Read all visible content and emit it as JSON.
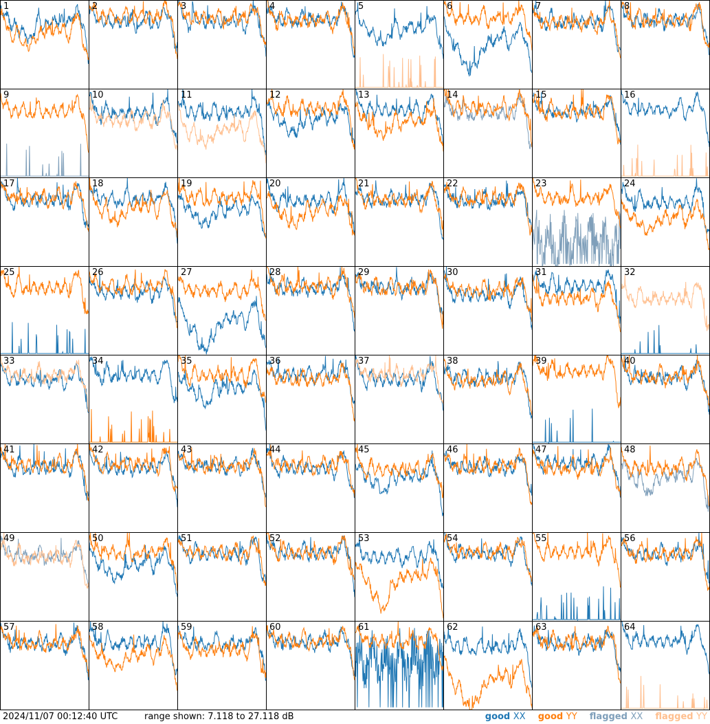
{
  "chart_data": {
    "type": "line",
    "timestamp": "2024/11/07 00:12:40 UTC",
    "range_text": "range shown: 7.118 to 27.118 dB",
    "ylim": [
      7.118,
      27.118
    ],
    "colors": {
      "good_xx": "#1f77b4",
      "good_yy": "#ff7f0e",
      "flagged_xx": "#7f9fba",
      "flagged_yy": "#ffbf8f"
    },
    "legend": [
      {
        "status": "good",
        "pol": "XX",
        "color": "#1f77b4"
      },
      {
        "status": "good",
        "pol": "YY",
        "color": "#ff7f0e"
      },
      {
        "status": "flagged",
        "pol": "XX",
        "color": "#7f9fba"
      },
      {
        "status": "flagged",
        "pol": "YY",
        "color": "#ffbf8f"
      }
    ],
    "panels": [
      {
        "id": "1",
        "xx": "good",
        "yy": "good",
        "xx_level": 22.3,
        "yy_level": 20.3,
        "xx_style": "dip",
        "yy_style": "dip"
      },
      {
        "id": "2",
        "xx": "good",
        "yy": "good",
        "xx_level": 22.3,
        "yy_level": 23.5,
        "xx_style": "normal",
        "yy_style": "normal"
      },
      {
        "id": "3",
        "xx": "good",
        "yy": "good",
        "xx_level": 22.3,
        "yy_level": 23.2,
        "xx_style": "normal",
        "yy_style": "normal"
      },
      {
        "id": "4",
        "xx": "good",
        "yy": "good",
        "xx_level": 22.8,
        "yy_level": 22.6,
        "xx_style": "normal",
        "yy_style": "normal"
      },
      {
        "id": "5",
        "xx": "good",
        "yy": "flagged",
        "xx_level": 21.0,
        "yy_level": 7.6,
        "xx_style": "dip",
        "yy_style": "spiky_low"
      },
      {
        "id": "6",
        "xx": "good",
        "yy": "good",
        "xx_level": 18.5,
        "yy_level": 23.2,
        "xx_style": "deep_dip",
        "yy_style": "normal"
      },
      {
        "id": "7",
        "xx": "good",
        "yy": "good",
        "xx_level": 22.3,
        "yy_level": 22.1,
        "xx_style": "normal",
        "yy_style": "normal"
      },
      {
        "id": "8",
        "xx": "good",
        "yy": "good",
        "xx_level": 22.6,
        "yy_level": 22.7,
        "xx_style": "normal",
        "yy_style": "normal"
      },
      {
        "id": "9",
        "xx": "flagged",
        "yy": "good",
        "xx_level": 8.5,
        "yy_level": 22.1,
        "xx_style": "spiky_low",
        "yy_style": "normal"
      },
      {
        "id": "10",
        "xx": "good",
        "yy": "flagged",
        "xx_level": 21.6,
        "yy_level": 20.1,
        "xx_style": "normal",
        "yy_style": "normal"
      },
      {
        "id": "11",
        "xx": "good",
        "yy": "flagged",
        "xx_level": 21.8,
        "yy_level": 18.2,
        "xx_style": "normal",
        "yy_style": "dip"
      },
      {
        "id": "12",
        "xx": "good",
        "yy": "good",
        "xx_level": 20.7,
        "yy_level": 22.7,
        "xx_style": "dip",
        "yy_style": "normal"
      },
      {
        "id": "13",
        "xx": "good",
        "yy": "good",
        "xx_level": 22.3,
        "yy_level": 20.1,
        "xx_style": "normal",
        "yy_style": "dip"
      },
      {
        "id": "14",
        "xx": "flagged",
        "yy": "good",
        "xx_level": 21.8,
        "yy_level": 22.8,
        "xx_style": "normal",
        "yy_style": "normal"
      },
      {
        "id": "15",
        "xx": "good",
        "yy": "good",
        "xx_level": 22.1,
        "yy_level": 22.1,
        "xx_style": "normal",
        "yy_style": "normal"
      },
      {
        "id": "16",
        "xx": "good",
        "yy": "flagged",
        "xx_level": 22.6,
        "yy_level": 7.4,
        "xx_style": "normal",
        "yy_style": "spiky_low"
      },
      {
        "id": "17",
        "xx": "good",
        "yy": "good",
        "xx_level": 22.1,
        "yy_level": 22.6,
        "xx_style": "normal",
        "yy_style": "normal"
      },
      {
        "id": "18",
        "xx": "good",
        "yy": "good",
        "xx_level": 22.3,
        "yy_level": 20.7,
        "xx_style": "normal",
        "yy_style": "dip"
      },
      {
        "id": "19",
        "xx": "good",
        "yy": "good",
        "xx_level": 20.1,
        "yy_level": 22.6,
        "xx_style": "dip",
        "yy_style": "normal"
      },
      {
        "id": "20",
        "xx": "good",
        "yy": "good",
        "xx_level": 21.8,
        "yy_level": 20.0,
        "xx_style": "normal",
        "yy_style": "dip"
      },
      {
        "id": "21",
        "xx": "good",
        "yy": "good",
        "xx_level": 22.2,
        "yy_level": 22.1,
        "xx_style": "normal",
        "yy_style": "normal"
      },
      {
        "id": "22",
        "xx": "good",
        "yy": "good",
        "xx_level": 21.8,
        "yy_level": 22.4,
        "xx_style": "normal",
        "yy_style": "normal"
      },
      {
        "id": "23",
        "xx": "flagged",
        "yy": "good",
        "xx_level": 12.5,
        "yy_level": 22.6,
        "xx_style": "spiky_mid",
        "yy_style": "normal"
      },
      {
        "id": "24",
        "xx": "good",
        "yy": "good",
        "xx_level": 21.6,
        "yy_level": 18.5,
        "xx_style": "normal",
        "yy_style": "dip"
      },
      {
        "id": "25",
        "xx": "good",
        "yy": "good",
        "xx_level": 7.4,
        "yy_level": 22.3,
        "xx_style": "spiky_low",
        "yy_style": "normal"
      },
      {
        "id": "26",
        "xx": "good",
        "yy": "good",
        "xx_level": 21.3,
        "yy_level": 22.6,
        "xx_style": "normal",
        "yy_style": "normal"
      },
      {
        "id": "27",
        "xx": "good",
        "yy": "good",
        "xx_level": 15.5,
        "yy_level": 21.6,
        "xx_style": "deep_dip",
        "yy_style": "normal"
      },
      {
        "id": "28",
        "xx": "good",
        "yy": "good",
        "xx_level": 22.1,
        "yy_level": 22.6,
        "xx_style": "normal",
        "yy_style": "normal"
      },
      {
        "id": "29",
        "xx": "good",
        "yy": "good",
        "xx_level": 22.3,
        "yy_level": 22.3,
        "xx_style": "normal",
        "yy_style": "normal"
      },
      {
        "id": "30",
        "xx": "good",
        "yy": "good",
        "xx_level": 20.7,
        "yy_level": 21.6,
        "xx_style": "normal",
        "yy_style": "normal"
      },
      {
        "id": "31",
        "xx": "good",
        "yy": "good",
        "xx_level": 22.6,
        "yy_level": 19.9,
        "xx_style": "normal",
        "yy_style": "normal"
      },
      {
        "id": "32",
        "xx": "good",
        "yy": "flagged",
        "xx_level": 7.4,
        "yy_level": 19.9,
        "xx_style": "spiky_low",
        "yy_style": "normal"
      },
      {
        "id": "33",
        "xx": "good",
        "yy": "flagged",
        "xx_level": 21.6,
        "yy_level": 22.6,
        "xx_style": "normal",
        "yy_style": "normal"
      },
      {
        "id": "34",
        "xx": "good",
        "yy": "good",
        "xx_level": 22.6,
        "yy_level": 8.8,
        "xx_style": "normal",
        "yy_style": "spiky_low"
      },
      {
        "id": "35",
        "xx": "good",
        "yy": "good",
        "xx_level": 20.0,
        "yy_level": 22.6,
        "xx_style": "dip",
        "yy_style": "normal"
      },
      {
        "id": "36",
        "xx": "good",
        "yy": "good",
        "xx_level": 22.6,
        "yy_level": 21.6,
        "xx_style": "normal",
        "yy_style": "normal"
      },
      {
        "id": "37",
        "xx": "good",
        "yy": "flagged",
        "xx_level": 21.6,
        "yy_level": 22.6,
        "xx_style": "normal",
        "yy_style": "normal"
      },
      {
        "id": "38",
        "xx": "good",
        "yy": "good",
        "xx_level": 21.8,
        "yy_level": 21.3,
        "xx_style": "normal",
        "yy_style": "normal"
      },
      {
        "id": "39",
        "xx": "good",
        "yy": "good",
        "xx_level": 7.4,
        "yy_level": 23.5,
        "xx_style": "spiky_low",
        "yy_style": "normal"
      },
      {
        "id": "40",
        "xx": "good",
        "yy": "good",
        "xx_level": 22.1,
        "yy_level": 22.3,
        "xx_style": "normal",
        "yy_style": "normal"
      },
      {
        "id": "41",
        "xx": "good",
        "yy": "good",
        "xx_level": 21.8,
        "yy_level": 22.3,
        "xx_style": "normal",
        "yy_style": "normal"
      },
      {
        "id": "42",
        "xx": "good",
        "yy": "good",
        "xx_level": 21.8,
        "yy_level": 22.6,
        "xx_style": "normal",
        "yy_style": "normal"
      },
      {
        "id": "43",
        "xx": "good",
        "yy": "good",
        "xx_level": 22.1,
        "yy_level": 22.1,
        "xx_style": "normal",
        "yy_style": "normal"
      },
      {
        "id": "44",
        "xx": "good",
        "yy": "good",
        "xx_level": 21.6,
        "yy_level": 22.3,
        "xx_style": "normal",
        "yy_style": "normal"
      },
      {
        "id": "45",
        "xx": "good",
        "yy": "good",
        "xx_level": 20.0,
        "yy_level": 21.3,
        "xx_style": "dip",
        "yy_style": "normal"
      },
      {
        "id": "46",
        "xx": "good",
        "yy": "good",
        "xx_level": 21.8,
        "yy_level": 22.1,
        "xx_style": "normal",
        "yy_style": "normal"
      },
      {
        "id": "47",
        "xx": "good",
        "yy": "good",
        "xx_level": 22.6,
        "yy_level": 21.6,
        "xx_style": "normal",
        "yy_style": "normal"
      },
      {
        "id": "48",
        "xx": "flagged",
        "yy": "good",
        "xx_level": 20.0,
        "yy_level": 21.6,
        "xx_style": "dip",
        "yy_style": "normal"
      },
      {
        "id": "49",
        "xx": "flagged",
        "yy": "flagged",
        "xx_level": 21.8,
        "yy_level": 21.6,
        "xx_style": "normal",
        "yy_style": "normal"
      },
      {
        "id": "50",
        "xx": "good",
        "yy": "good",
        "xx_level": 20.3,
        "yy_level": 22.6,
        "xx_style": "dip",
        "yy_style": "normal"
      },
      {
        "id": "51",
        "xx": "good",
        "yy": "good",
        "xx_level": 22.3,
        "yy_level": 22.6,
        "xx_style": "normal",
        "yy_style": "normal"
      },
      {
        "id": "52",
        "xx": "good",
        "yy": "good",
        "xx_level": 22.6,
        "yy_level": 22.6,
        "xx_style": "normal",
        "yy_style": "normal"
      },
      {
        "id": "53",
        "xx": "good",
        "yy": "good",
        "xx_level": 21.6,
        "yy_level": 17.5,
        "xx_style": "normal",
        "yy_style": "deep_dip"
      },
      {
        "id": "54",
        "xx": "good",
        "yy": "good",
        "xx_level": 22.3,
        "yy_level": 22.8,
        "xx_style": "normal",
        "yy_style": "normal"
      },
      {
        "id": "55",
        "xx": "good",
        "yy": "good",
        "xx_level": 8.2,
        "yy_level": 22.6,
        "xx_style": "spiky_low",
        "yy_style": "normal"
      },
      {
        "id": "56",
        "xx": "good",
        "yy": "good",
        "xx_level": 22.1,
        "yy_level": 22.3,
        "xx_style": "normal",
        "yy_style": "normal"
      },
      {
        "id": "57",
        "xx": "good",
        "yy": "good",
        "xx_level": 22.1,
        "yy_level": 22.1,
        "xx_style": "normal",
        "yy_style": "normal"
      },
      {
        "id": "58",
        "xx": "good",
        "yy": "good",
        "xx_level": 22.3,
        "yy_level": 19.9,
        "xx_style": "normal",
        "yy_style": "dip"
      },
      {
        "id": "59",
        "xx": "good",
        "yy": "good",
        "xx_level": 22.1,
        "yy_level": 20.7,
        "xx_style": "normal",
        "yy_style": "normal"
      },
      {
        "id": "60",
        "xx": "good",
        "yy": "good",
        "xx_level": 22.3,
        "yy_level": 22.6,
        "xx_style": "normal",
        "yy_style": "normal"
      },
      {
        "id": "61",
        "xx": "good",
        "yy": "good",
        "xx_level": 18.5,
        "yy_level": 22.6,
        "xx_style": "spiky_mid",
        "yy_style": "normal"
      },
      {
        "id": "62",
        "xx": "good",
        "yy": "good",
        "xx_level": 21.3,
        "yy_level": 14.5,
        "xx_style": "normal",
        "yy_style": "deep_dip"
      },
      {
        "id": "63",
        "xx": "good",
        "yy": "good",
        "xx_level": 22.1,
        "yy_level": 22.3,
        "xx_style": "normal",
        "yy_style": "normal"
      },
      {
        "id": "64",
        "xx": "good",
        "yy": "flagged",
        "xx_level": 22.6,
        "yy_level": 7.4,
        "xx_style": "normal",
        "yy_style": "spiky_low"
      }
    ]
  }
}
